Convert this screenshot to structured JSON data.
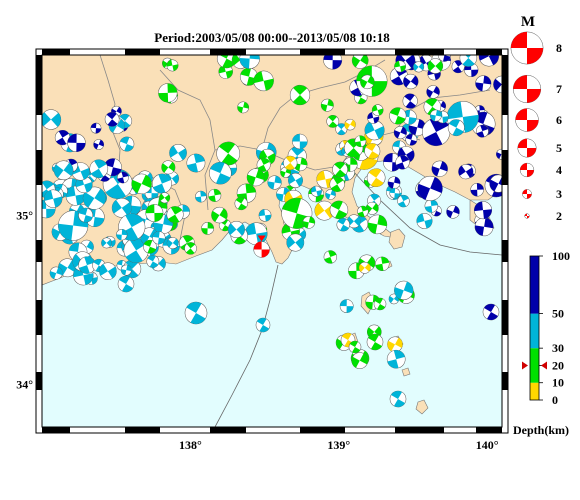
{
  "title": "Period:2003/05/08 00:00--2013/05/08 10:18",
  "map": {
    "lon_range": [
      137.0,
      140.1
    ],
    "lat_range": [
      33.75,
      35.95
    ],
    "lon_ticks": [
      {
        "value": 138,
        "label": "138°"
      },
      {
        "value": 139,
        "label": "139°"
      },
      {
        "value": 140,
        "label": "140°"
      }
    ],
    "lat_ticks": [
      {
        "value": 35,
        "label": "35°"
      },
      {
        "value": 34,
        "label": "34°"
      }
    ],
    "colors": {
      "land": "#fae0b8",
      "sea": "#e2fdfe",
      "border": "#888888",
      "frame": "#000000"
    },
    "main_event": {
      "lon": 138.48,
      "lat": 34.8,
      "magnitude": 5,
      "depth_km": 20,
      "color": "#ff0000"
    }
  },
  "magnitude_legend": {
    "title": "M",
    "items": [
      {
        "mag": 8,
        "label": "8"
      },
      {
        "mag": 7,
        "label": "7"
      },
      {
        "mag": 6,
        "label": "6"
      },
      {
        "mag": 5,
        "label": "5"
      },
      {
        "mag": 4,
        "label": "4"
      },
      {
        "mag": 3,
        "label": "3"
      },
      {
        "mag": 2,
        "label": "2"
      }
    ]
  },
  "depth_scale": {
    "title": "Depth(km)",
    "max_depth": 100,
    "marker_depth": 20,
    "ticks": [
      {
        "value": 100,
        "label": "100"
      },
      {
        "value": 50,
        "label": "50"
      },
      {
        "value": 30,
        "label": "30"
      },
      {
        "value": 20,
        "label": "20"
      },
      {
        "value": 10,
        "label": "10"
      },
      {
        "value": 0,
        "label": "0"
      }
    ],
    "bands": [
      {
        "from": 0,
        "to": 10,
        "color": "#ffd700"
      },
      {
        "from": 10,
        "to": 30,
        "color": "#00e000"
      },
      {
        "from": 30,
        "to": 50,
        "color": "#00b4d8"
      },
      {
        "from": 50,
        "to": 100,
        "color": "#0000aa"
      }
    ]
  }
}
